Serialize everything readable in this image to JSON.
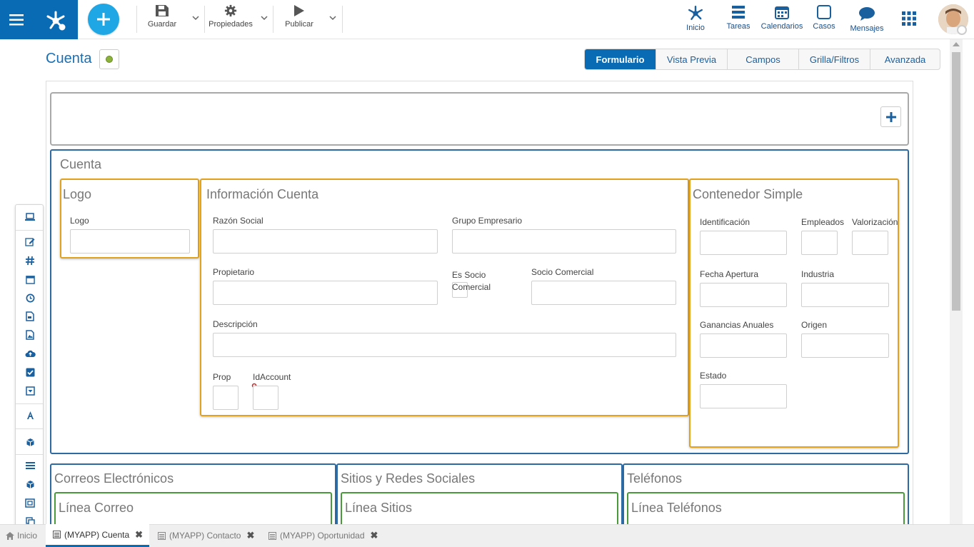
{
  "toolbar": {
    "save_label": "Guardar",
    "properties_label": "Propiedades",
    "publish_label": "Publicar"
  },
  "nav": {
    "home": "Inicio",
    "tasks": "Tareas",
    "calendars": "Calendarios",
    "cases": "Casos",
    "messages": "Mensajes"
  },
  "page": {
    "title": "Cuenta",
    "tabs": [
      "Formulario",
      "Vista Previa",
      "Campos",
      "Grilla/Filtros",
      "Avanzada"
    ],
    "active_tab": "Formulario"
  },
  "form": {
    "main_group_title": "Cuenta",
    "logo_panel": {
      "title": "Logo",
      "field_label": "Logo"
    },
    "info_panel": {
      "title": "Información Cuenta",
      "fields": {
        "razon_social": "Razón Social",
        "grupo_empresarial": "Grupo Empresario",
        "propietario": "Propietario",
        "es_socio": "Es Socio Comercial",
        "socio_comercial": "Socio Comercial",
        "descripcion": "Descripción",
        "prop": "Prop",
        "idaccount": "IdAccount"
      }
    },
    "simple_panel": {
      "title": "Contenedor Simple",
      "fields": {
        "identificacion": "Identificación",
        "empleados": "Empleados",
        "valorizacion": "Valorización",
        "fecha_apertura": "Fecha Apertura",
        "industria": "Industria",
        "ganancias": "Ganancias Anuales",
        "origen": "Origen",
        "estado": "Estado"
      }
    },
    "bottom_groups": [
      {
        "title": "Correos Electrónicos",
        "inner": "Línea Correo"
      },
      {
        "title": "Sitios y Redes Sociales",
        "inner": "Línea Sitios"
      },
      {
        "title": "Teléfonos",
        "inner": "Línea Teléfonos"
      }
    ]
  },
  "bottom_tabs": [
    {
      "label": "Inicio"
    },
    {
      "label": "(MYAPP) Cuenta"
    },
    {
      "label": "(MYAPP) Contacto"
    },
    {
      "label": "(MYAPP) Oportunidad"
    }
  ],
  "colors": {
    "primary": "#0a6bb5",
    "add_button": "#1ea7e4",
    "group_border": "#2d6aa3",
    "container_border": "#e1a220",
    "line_border": "#4a9a3c",
    "status_dot": "#8bb23a"
  }
}
